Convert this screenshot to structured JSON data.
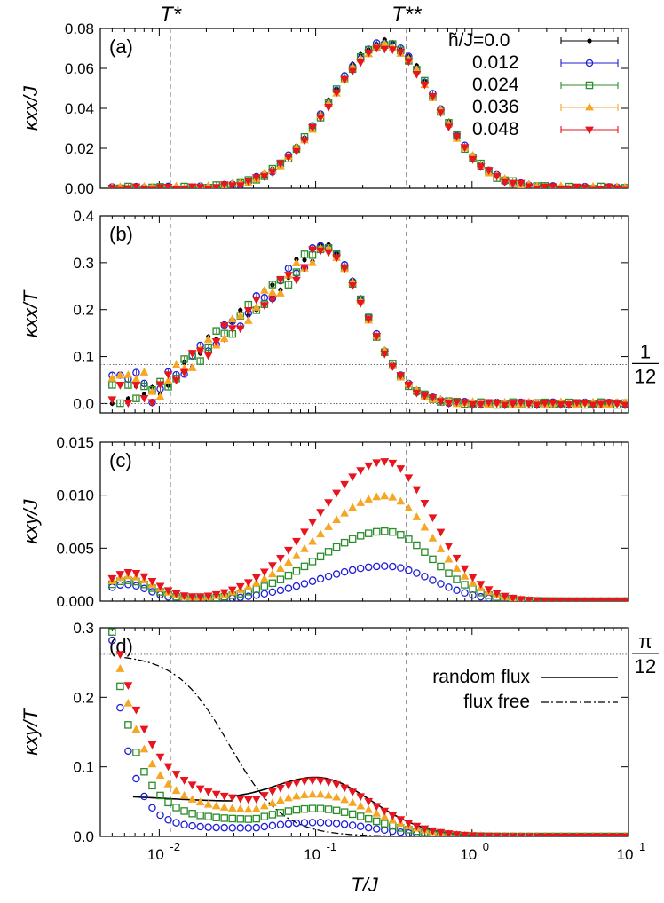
{
  "figure": {
    "xlabel": "T/J",
    "markers": [
      {
        "name": "T*",
        "x": 0.0118
      },
      {
        "name": "T**",
        "x": 0.38
      }
    ],
    "legend": {
      "title": "h̃/J=",
      "entries": [
        "0.0",
        "0.012",
        "0.024",
        "0.036",
        "0.048"
      ]
    },
    "line_legend": {
      "entries": [
        "random flux",
        "flux free"
      ]
    },
    "ref_labels": {
      "one_twelfth": {
        "num": "1",
        "den": "12"
      },
      "pi_twelfth": {
        "num": "π",
        "den": "12"
      }
    },
    "x_ticks": [
      {
        "value": 0.01,
        "label": "10",
        "exp": "-2"
      },
      {
        "value": 0.1,
        "label": "10",
        "exp": "-1"
      },
      {
        "value": 1,
        "label": "10",
        "exp": "0"
      },
      {
        "value": 10,
        "label": "10",
        "exp": "1"
      }
    ]
  },
  "series_styles": [
    {
      "name": "0.0",
      "color": "#000000",
      "marker": "dot"
    },
    {
      "name": "0.012",
      "color": "#1f1fd6",
      "marker": "circle"
    },
    {
      "name": "0.024",
      "color": "#2a8c2a",
      "marker": "square"
    },
    {
      "name": "0.036",
      "color": "#f5a623",
      "marker": "triangle-up"
    },
    {
      "name": "0.048",
      "color": "#e8141e",
      "marker": "triangle-down"
    }
  ],
  "chart_data": [
    {
      "type": "scatter",
      "panel": "(a)",
      "xlabel": "",
      "ylabel": "κxx/J",
      "x_scale": "log",
      "xlim": [
        0.0042,
        10
      ],
      "ylim": [
        0,
        0.08
      ],
      "yticks": [
        "0.00",
        "0.02",
        "0.04",
        "0.06",
        "0.08"
      ],
      "description_curve": "all field values collapse on one curve: ~0 below 0.008, rising to peak 0.0735 at T/J≈0.28, decaying to 0.002 at T/J=10",
      "peak": {
        "x": 0.28,
        "y": 0.0735
      }
    },
    {
      "type": "scatter",
      "panel": "(b)",
      "xlabel": "",
      "ylabel": "κxx/T",
      "x_scale": "log",
      "xlim": [
        0.0042,
        10
      ],
      "ylim": [
        -0.02,
        0.4
      ],
      "yticks": [
        "0.0",
        "0.1",
        "0.2",
        "0.3",
        "0.4"
      ],
      "reference_lines": [
        0.0833,
        0
      ],
      "peak": {
        "x": 0.11,
        "y": 0.34
      }
    },
    {
      "type": "scatter",
      "panel": "(c)",
      "xlabel": "",
      "ylabel": "κxy/J",
      "x_scale": "log",
      "xlim": [
        0.0042,
        10
      ],
      "ylim": [
        0,
        0.015
      ],
      "yticks": [
        "0.000",
        "0.005",
        "0.010",
        "0.015"
      ],
      "series_peaks": [
        {
          "name": "0.012",
          "x": 0.28,
          "y": 0.0033
        },
        {
          "name": "0.024",
          "x": 0.28,
          "y": 0.0066
        },
        {
          "name": "0.036",
          "x": 0.28,
          "y": 0.01
        },
        {
          "name": "0.048",
          "x": 0.28,
          "y": 0.0135
        }
      ]
    },
    {
      "type": "scatter",
      "panel": "(d)",
      "xlabel": "T/J",
      "ylabel": "κxy/T",
      "x_scale": "log",
      "xlim": [
        0.0042,
        10
      ],
      "ylim": [
        0,
        0.3
      ],
      "yticks": [
        "0.0",
        "0.1",
        "0.2",
        "0.3"
      ],
      "reference_lines": [
        0.2618
      ],
      "series_peaks": [
        {
          "name": "0.012",
          "y_low": 0.012,
          "y_hump": 0.02
        },
        {
          "name": "0.024",
          "y_low": 0.024,
          "y_hump": 0.04
        },
        {
          "name": "0.036",
          "y_low": 0.036,
          "y_hump": 0.06
        },
        {
          "name": "0.048",
          "y_low": 0.05,
          "y_hump": 0.08
        }
      ]
    }
  ]
}
